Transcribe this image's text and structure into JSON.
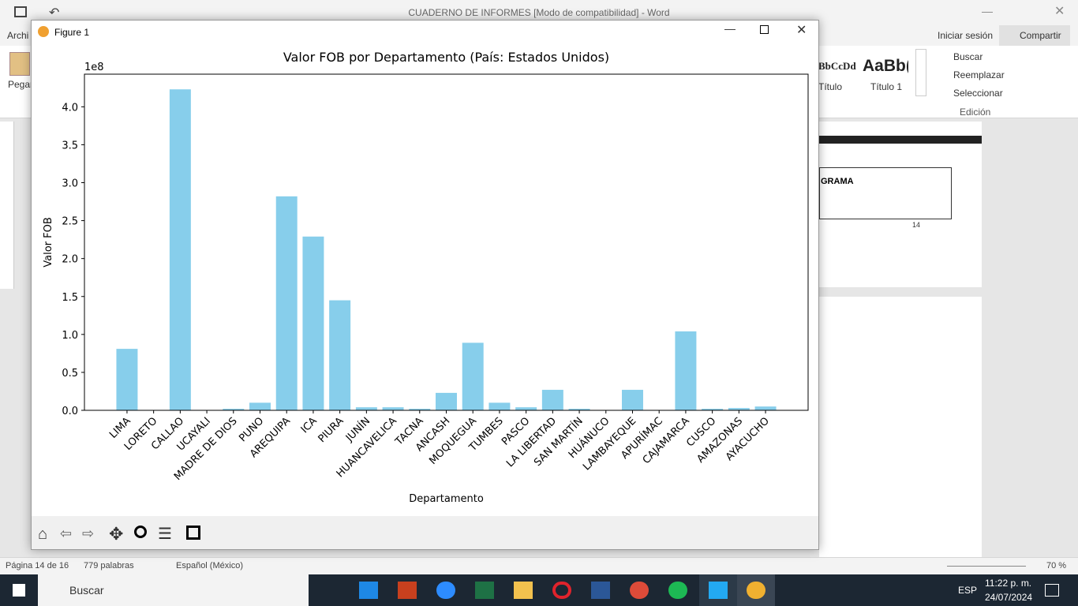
{
  "word": {
    "title": "CUADERNO DE INFORMES [Modo de compatibilidad] - Word",
    "file_tab": "Archi",
    "paste": "Pegar",
    "signin": "Iniciar sesión",
    "share": "Compartir",
    "style_preview_1": "BbCcDd",
    "style_name_1": "Título",
    "style_preview_2": "AaBb(",
    "style_name_2": "Título 1",
    "find": "Buscar",
    "replace": "Reemplazar",
    "select": "Seleccionar",
    "editing_group": "Edición",
    "doc_table_header": "GRAMA",
    "doc_page_number": "14",
    "status_page": "Página 14 de 16",
    "status_words": "779 palabras",
    "status_language": "Español (México)",
    "status_zoom": "70 %"
  },
  "taskbar": {
    "search": "Buscar",
    "language": "ESP",
    "time": "11:22 p. m.",
    "date": "24/07/2024"
  },
  "figure": {
    "window_title": "Figure 1"
  },
  "chart_data": {
    "type": "bar",
    "title": "Valor FOB por Departamento (País: Estados Unidos)",
    "offset_label": "1e8",
    "x_label": "Departamento",
    "y_label": "Valor FOB",
    "color": "#87ceeb",
    "categories": [
      "LIMA",
      "LORETO",
      "CALLAO",
      "UCAYALI",
      "MADRE DE DIOS",
      "PUNO",
      "AREQUIPA",
      "ICA",
      "PIURA",
      "JUNÍN",
      "HUANCAVELICA",
      "TACNA",
      "ANCASH",
      "MOQUEGUA",
      "TUMBES",
      "PASCO",
      "LA LIBERTAD",
      "SAN MARTÍN",
      "HUÁNUCO",
      "LAMBAYEQUE",
      "APURÍMAC",
      "CAJAMARCA",
      "CUSCO",
      "AMAZONAS",
      "AYACUCHO"
    ],
    "values": [
      0.81,
      0,
      4.23,
      0,
      0.02,
      0.1,
      2.82,
      2.29,
      1.45,
      0.04,
      0.04,
      0.02,
      0.23,
      0.89,
      0.1,
      0.04,
      0.27,
      0.02,
      0,
      0.27,
      0,
      1.04,
      0.02,
      0.03,
      0.05
    ],
    "ylim": [
      0,
      4.43
    ],
    "yticks": [
      {
        "value": 0,
        "label": "0.0"
      },
      {
        "value": 0.5,
        "label": "0.5"
      },
      {
        "value": 1,
        "label": "1.0"
      },
      {
        "value": 1.5,
        "label": "1.5"
      },
      {
        "value": 2,
        "label": "2.0"
      },
      {
        "value": 2.5,
        "label": "2.5"
      },
      {
        "value": 3,
        "label": "3.0"
      },
      {
        "value": 3.5,
        "label": "3.5"
      },
      {
        "value": 4,
        "label": "4.0"
      }
    ],
    "grid": false
  }
}
